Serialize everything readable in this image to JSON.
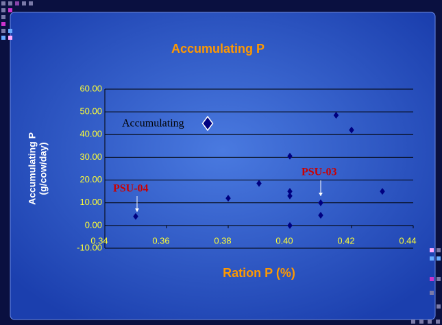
{
  "chart_data": {
    "type": "scatter",
    "title": "Accumulating P",
    "xlabel": "Ration P (%)",
    "ylabel": [
      "Accumulating P",
      "(g/cow/day)"
    ],
    "series": [
      {
        "name": "Accumulating",
        "color": "#000080",
        "x": [
          0.35,
          0.38,
          0.39,
          0.4,
          0.4,
          0.4,
          0.4,
          0.41,
          0.41,
          0.415,
          0.42,
          0.43
        ],
        "values": [
          4,
          12,
          18.5,
          30.5,
          15,
          13,
          0,
          10,
          4.5,
          48.5,
          42,
          15
        ]
      }
    ],
    "xlim": [
      0.34,
      0.44
    ],
    "xticks": [
      0.34,
      0.36,
      0.38,
      {
        "value": 0.4,
        "label": "0.40"
      },
      0.42,
      0.44
    ],
    "ylim": [
      -10,
      60
    ],
    "yticks": [
      {
        "value": -10,
        "label": "-10.00"
      },
      {
        "value": 0,
        "label": "0.00"
      },
      {
        "value": 10,
        "label": "10.00"
      },
      {
        "value": 20,
        "label": "20.00"
      },
      {
        "value": 30,
        "label": "30.00"
      },
      {
        "value": 40,
        "label": "40.00"
      },
      {
        "value": 50,
        "label": "50.00"
      },
      {
        "value": 60,
        "label": "60.00"
      }
    ],
    "grid": true,
    "annotations": [
      "PSU-04",
      "PSU-03"
    ]
  }
}
